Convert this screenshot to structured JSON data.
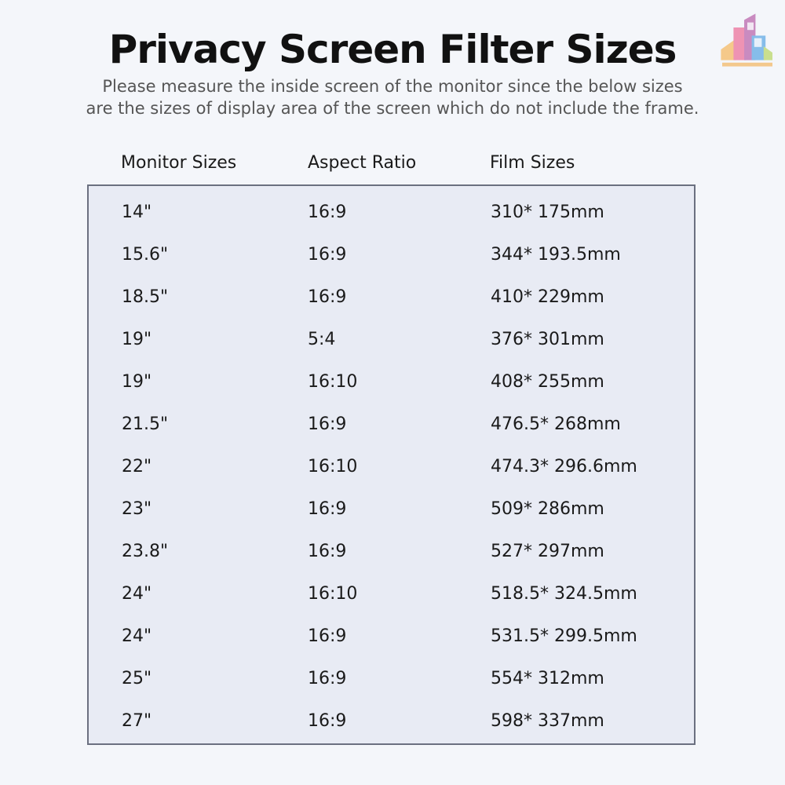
{
  "title": "Privacy Screen Filter Sizes",
  "subtitle": [
    "Please measure the inside screen of the monitor since the below sizes",
    "are the sizes of display area of the screen which do not include the frame."
  ],
  "logo": {
    "icon": "city-buildings-logo",
    "colors": [
      "#f0c27a",
      "#e98fb0",
      "#c98bc0",
      "#7fb8e8",
      "#c6df8a"
    ]
  },
  "table": {
    "headers": [
      "Monitor Sizes",
      "Aspect Ratio",
      "Film Sizes"
    ],
    "rows": [
      [
        "14\"",
        "16:9",
        "310* 175mm"
      ],
      [
        "15.6\"",
        "16:9",
        "344* 193.5mm"
      ],
      [
        "18.5\"",
        "16:9",
        "410* 229mm"
      ],
      [
        "19\"",
        "5:4",
        "376* 301mm"
      ],
      [
        "19\"",
        "16:10",
        "408* 255mm"
      ],
      [
        "21.5\"",
        "16:9",
        "476.5* 268mm"
      ],
      [
        "22\"",
        "16:10",
        "474.3* 296.6mm"
      ],
      [
        "23\"",
        "16:9",
        "509* 286mm"
      ],
      [
        "23.8\"",
        "16:9",
        "527* 297mm"
      ],
      [
        "24\"",
        "16:10",
        "518.5* 324.5mm"
      ],
      [
        "24\"",
        "16:9",
        "531.5* 299.5mm"
      ],
      [
        "25\"",
        "16:9",
        "554* 312mm"
      ],
      [
        "27\"",
        "16:9",
        "598* 337mm"
      ]
    ]
  }
}
